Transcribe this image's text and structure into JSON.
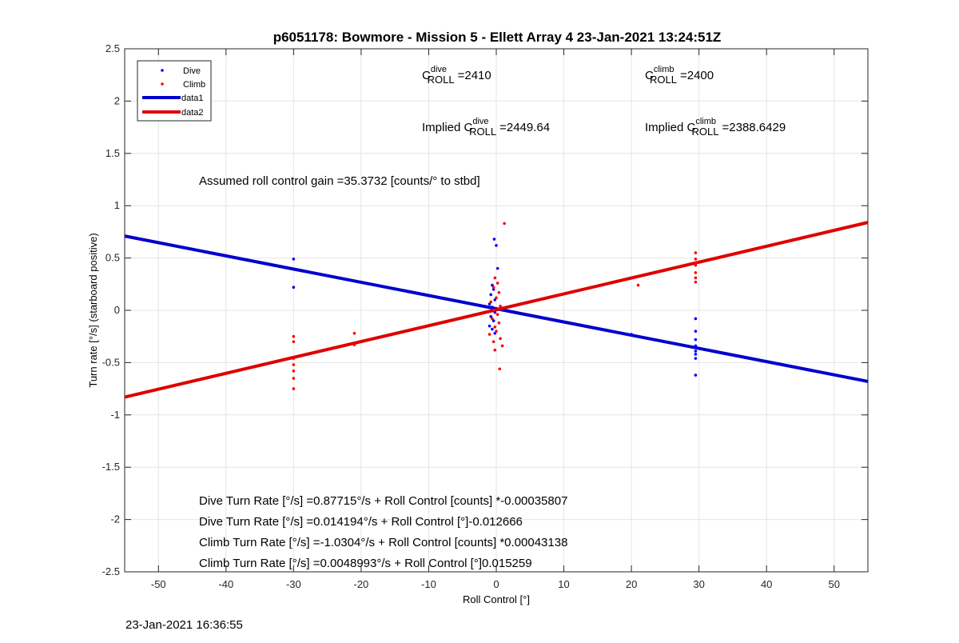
{
  "chart_data": {
    "type": "scatter",
    "title": "p6051178: Bowmore - Mission 5 - Ellett Array 4 23-Jan-2021 13:24:51Z",
    "xlabel": "Roll Control [°]",
    "ylabel": "Turn rate [°/s] (starboard positive)",
    "xlim": [
      -55,
      55
    ],
    "ylim": [
      -2.5,
      2.5
    ],
    "xticks": [
      -50,
      -40,
      -30,
      -20,
      -10,
      0,
      10,
      20,
      30,
      40,
      50
    ],
    "yticks": [
      -2.5,
      -2,
      -1.5,
      -1,
      -0.5,
      0,
      0.5,
      1,
      1.5,
      2,
      2.5
    ],
    "grid": true,
    "legend_position": "top-left",
    "series": [
      {
        "name": "Dive",
        "kind": "points",
        "color": "#0000ff",
        "points": [
          [
            -30,
            0.49
          ],
          [
            -30,
            0.22
          ],
          [
            -0.3,
            0.68
          ],
          [
            0,
            0.62
          ],
          [
            0.2,
            0.4
          ],
          [
            -0.6,
            0.24
          ],
          [
            -0.4,
            0.2
          ],
          [
            -0.8,
            0.15
          ],
          [
            -0.2,
            0.1
          ],
          [
            -1,
            0.06
          ],
          [
            -0.6,
            0.03
          ],
          [
            -0.2,
            -0.02
          ],
          [
            -0.8,
            -0.06
          ],
          [
            -0.4,
            -0.1
          ],
          [
            -1,
            -0.15
          ],
          [
            -0.6,
            -0.18
          ],
          [
            -0.2,
            -0.22
          ],
          [
            20,
            -0.23
          ],
          [
            29.5,
            -0.08
          ],
          [
            29.5,
            -0.2
          ],
          [
            29.5,
            -0.28
          ],
          [
            29.5,
            -0.34
          ],
          [
            29.5,
            -0.39
          ],
          [
            29.5,
            -0.42
          ],
          [
            29.5,
            -0.46
          ],
          [
            29.5,
            -0.62
          ]
        ]
      },
      {
        "name": "Climb",
        "kind": "points",
        "color": "#ff0000",
        "points": [
          [
            1.2,
            0.83
          ],
          [
            -0.2,
            0.31
          ],
          [
            0.2,
            0.26
          ],
          [
            -0.4,
            0.22
          ],
          [
            0.4,
            0.17
          ],
          [
            0,
            0.12
          ],
          [
            -0.8,
            0.08
          ],
          [
            0.6,
            0.04
          ],
          [
            -0.4,
            0
          ],
          [
            0.2,
            -0.04
          ],
          [
            -0.6,
            -0.08
          ],
          [
            0.4,
            -0.12
          ],
          [
            -0.2,
            -0.16
          ],
          [
            0,
            -0.2
          ],
          [
            -1,
            -0.23
          ],
          [
            0.6,
            -0.27
          ],
          [
            -0.4,
            -0.3
          ],
          [
            0.9,
            -0.34
          ],
          [
            -0.2,
            -0.38
          ],
          [
            0.5,
            -0.56
          ],
          [
            -30,
            -0.25
          ],
          [
            -30,
            -0.3
          ],
          [
            -30,
            -0.46
          ],
          [
            -30,
            -0.52
          ],
          [
            -30,
            -0.58
          ],
          [
            -30,
            -0.65
          ],
          [
            -30,
            -0.75
          ],
          [
            -21,
            -0.22
          ],
          [
            -21,
            -0.33
          ],
          [
            21,
            0.24
          ],
          [
            29.5,
            0.55
          ],
          [
            29.5,
            0.49
          ],
          [
            29.5,
            0.45
          ],
          [
            29.5,
            0.43
          ],
          [
            29.5,
            0.36
          ],
          [
            29.5,
            0.31
          ],
          [
            29.5,
            0.27
          ]
        ]
      },
      {
        "name": "data1",
        "kind": "line",
        "color": "#0000cc",
        "x": [
          -55,
          55
        ],
        "y": [
          0.71,
          -0.68
        ]
      },
      {
        "name": "data2",
        "kind": "line",
        "color": "#dd0000",
        "x": [
          -55,
          55
        ],
        "y": [
          -0.83,
          0.84
        ]
      }
    ],
    "annotations": {
      "c_dive": {
        "base": "C",
        "sup": "dive",
        "sub": "ROLL",
        "value": "=2410"
      },
      "c_climb": {
        "base": "C",
        "sup": "climb",
        "sub": "ROLL",
        "value": "=2400"
      },
      "implied_dive": {
        "prefix": "Implied C",
        "sup": "dive",
        "sub": "ROLL",
        "value": "=2449.64"
      },
      "implied_climb": {
        "prefix": "Implied C",
        "sup": "climb",
        "sub": "ROLL",
        "value": "=2388.6429"
      },
      "gain": "Assumed roll control gain =35.3732 [counts/° to stbd]",
      "fits": [
        "Dive Turn Rate [°/s] =0.87715°/s + Roll Control [counts] *-0.00035807",
        "Dive Turn Rate [°/s] =0.014194°/s + Roll Control [°]-0.012666",
        "Climb Turn Rate [°/s] =-1.0304°/s + Roll Control [counts] *0.00043138",
        "Climb Turn Rate [°/s] =0.0048993°/s + Roll Control [°]0.015259"
      ]
    }
  },
  "footer_timestamp": "23-Jan-2021 16:36:55"
}
